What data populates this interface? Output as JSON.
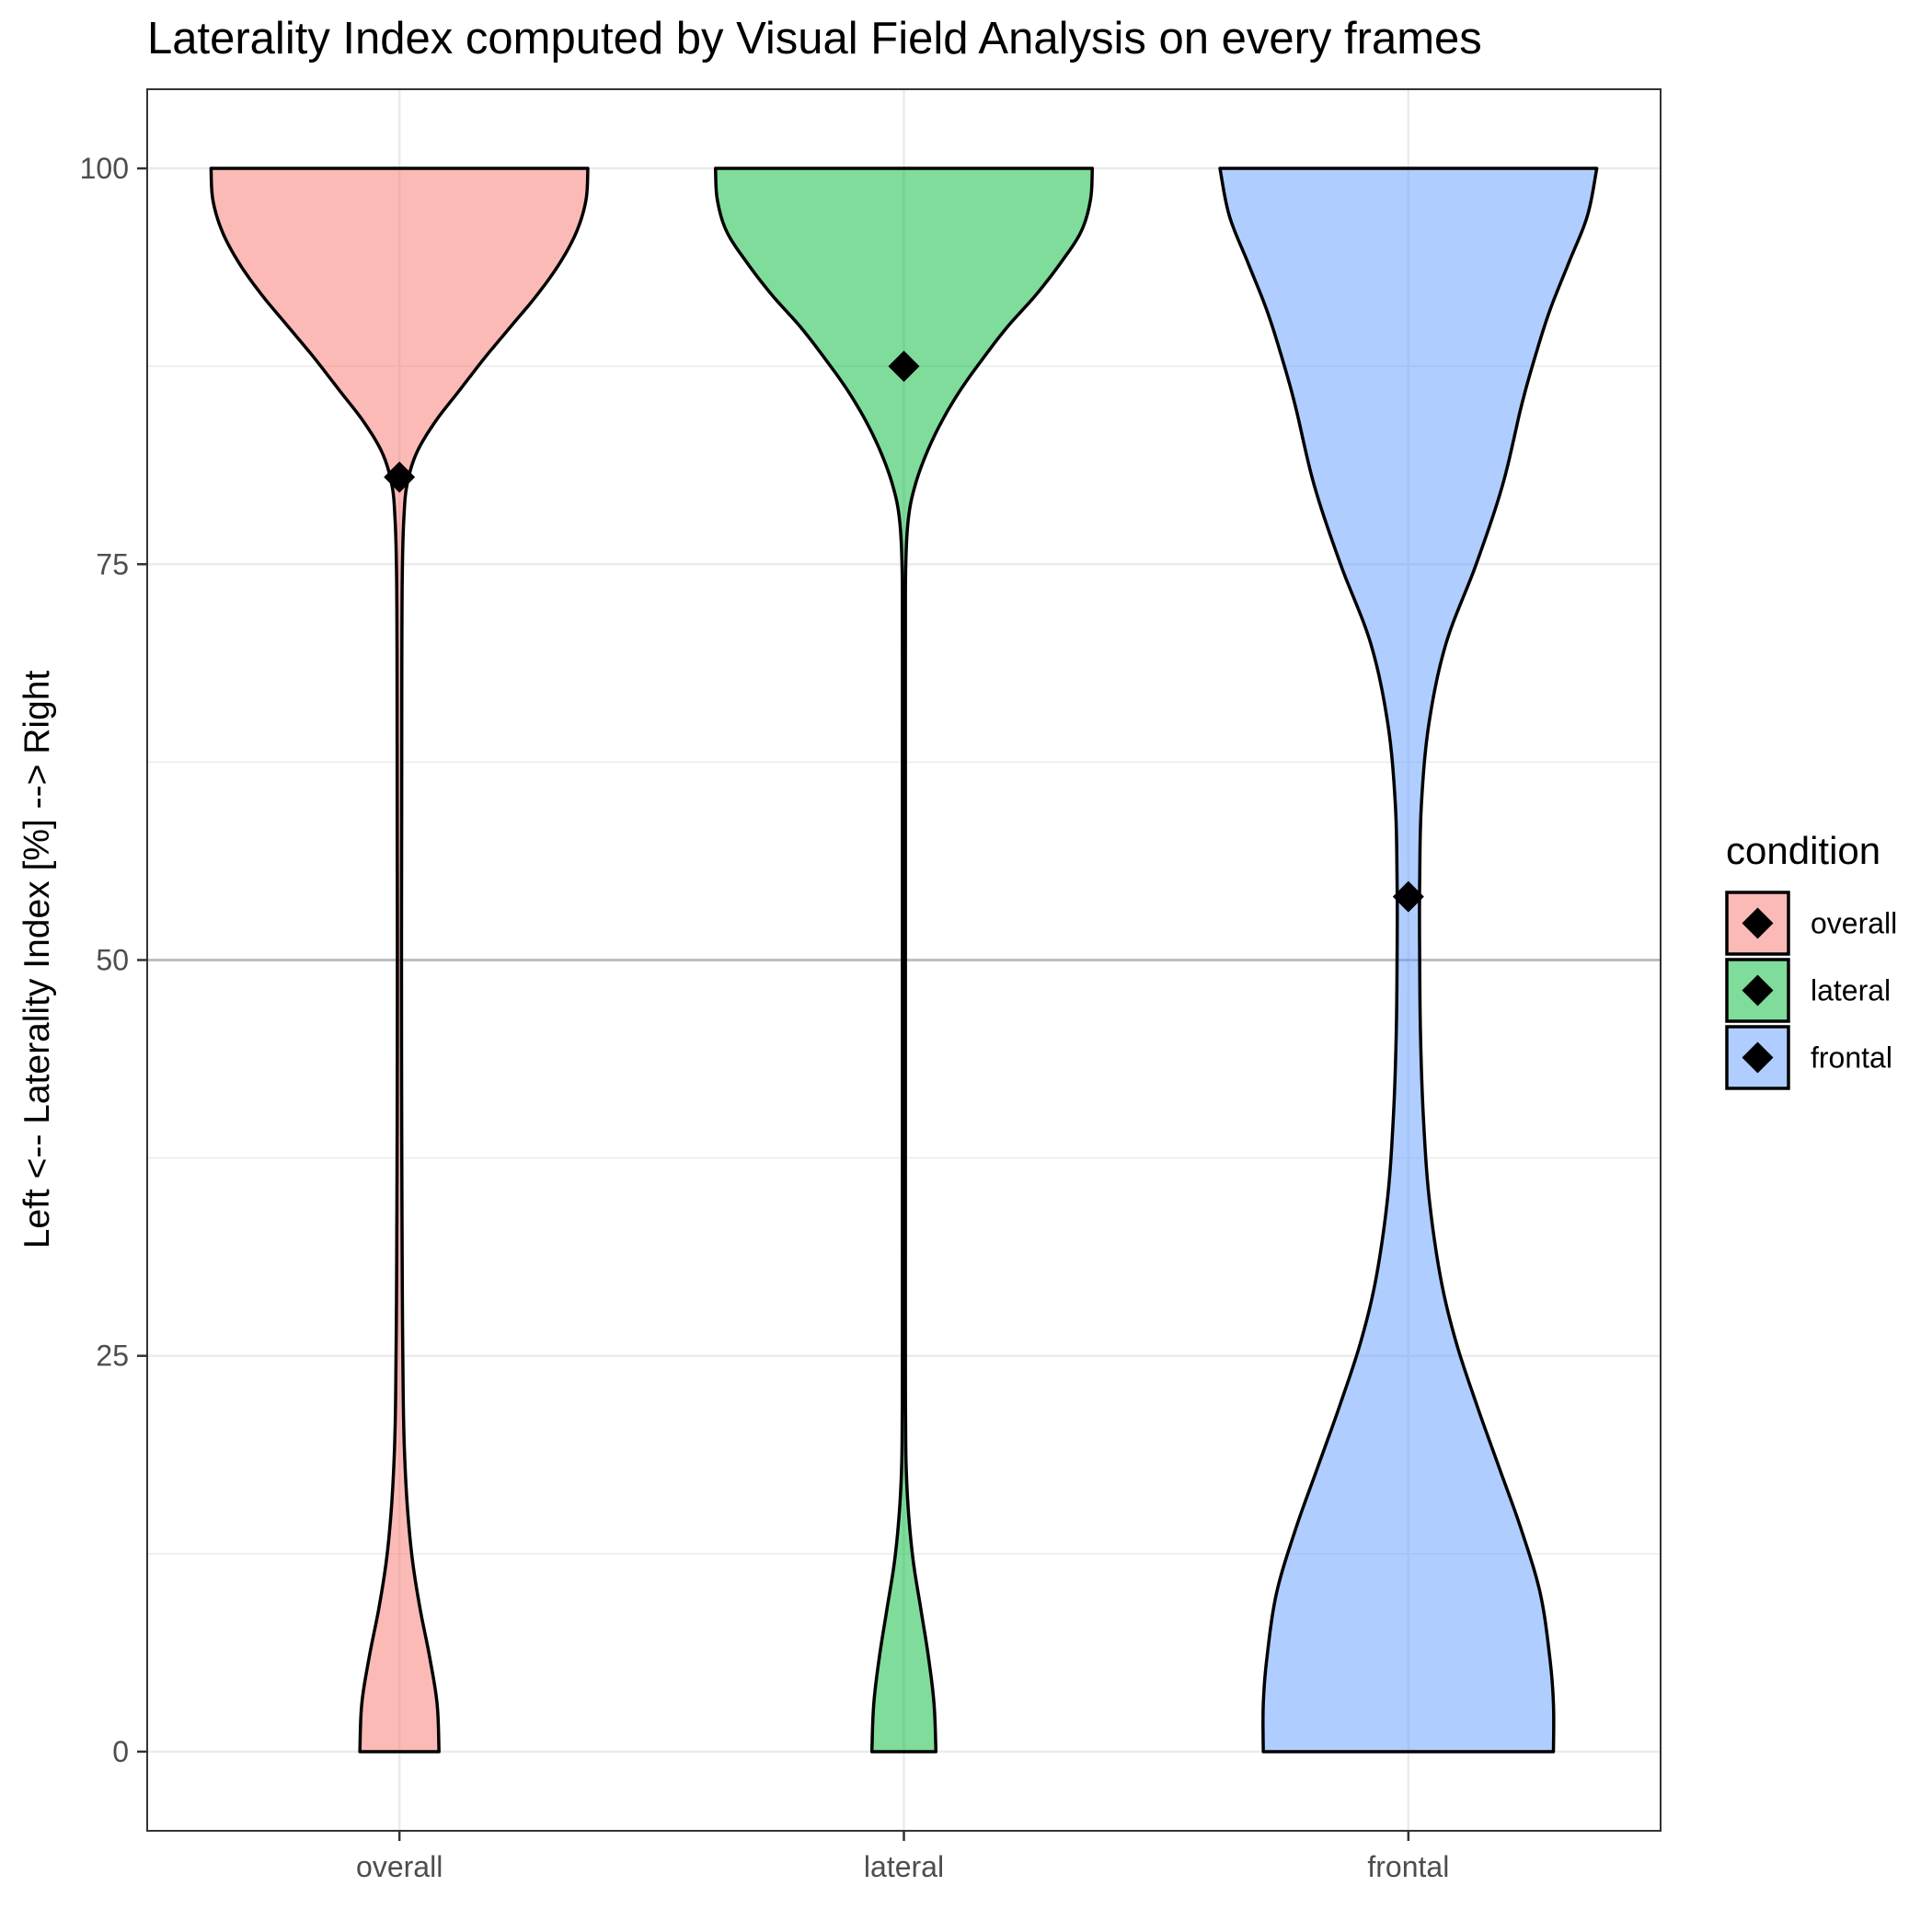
{
  "chart_data": {
    "type": "violin",
    "title": "Laterality Index computed by Visual Field Analysis on every frames",
    "xlabel": "",
    "ylabel": "Left <-- Laterality Index [%] --> Right",
    "ylim": [
      -5,
      105
    ],
    "yticks": [
      0,
      25,
      50,
      75,
      100
    ],
    "reference_line": 50,
    "grid": true,
    "categories": [
      "overall",
      "lateral",
      "frontal"
    ],
    "legend": {
      "title": "condition",
      "placement": "right",
      "items": [
        "overall",
        "lateral",
        "frontal"
      ]
    },
    "series": [
      {
        "name": "overall",
        "color": "#F8766D",
        "mean": 80.5,
        "density_profile": [
          [
            0,
            0.21
          ],
          [
            3,
            0.2
          ],
          [
            6,
            0.16
          ],
          [
            9,
            0.11
          ],
          [
            12,
            0.07
          ],
          [
            15,
            0.045
          ],
          [
            18,
            0.03
          ],
          [
            21,
            0.022
          ],
          [
            25,
            0.018
          ],
          [
            30,
            0.015
          ],
          [
            40,
            0.012
          ],
          [
            50,
            0.011
          ],
          [
            60,
            0.012
          ],
          [
            70,
            0.013
          ],
          [
            75,
            0.016
          ],
          [
            78,
            0.024
          ],
          [
            80,
            0.04
          ],
          [
            82,
            0.09
          ],
          [
            84,
            0.19
          ],
          [
            86,
            0.32
          ],
          [
            88,
            0.45
          ],
          [
            90,
            0.59
          ],
          [
            92,
            0.73
          ],
          [
            94,
            0.85
          ],
          [
            96,
            0.94
          ],
          [
            98,
            0.99
          ],
          [
            100,
            1.0
          ]
        ]
      },
      {
        "name": "lateral",
        "color": "#00BA38",
        "mean": 87.5,
        "density_profile": [
          [
            0,
            0.17
          ],
          [
            3,
            0.16
          ],
          [
            6,
            0.13
          ],
          [
            9,
            0.09
          ],
          [
            12,
            0.05
          ],
          [
            15,
            0.025
          ],
          [
            18,
            0.012
          ],
          [
            21,
            0.009
          ],
          [
            25,
            0.008
          ],
          [
            40,
            0.008
          ],
          [
            50,
            0.008
          ],
          [
            60,
            0.008
          ],
          [
            70,
            0.008
          ],
          [
            75,
            0.01
          ],
          [
            78,
            0.025
          ],
          [
            80,
            0.06
          ],
          [
            82,
            0.12
          ],
          [
            84,
            0.2
          ],
          [
            86,
            0.3
          ],
          [
            88,
            0.42
          ],
          [
            90,
            0.55
          ],
          [
            92,
            0.7
          ],
          [
            94,
            0.83
          ],
          [
            96,
            0.94
          ],
          [
            98,
            0.99
          ],
          [
            100,
            1.0
          ]
        ]
      },
      {
        "name": "frontal",
        "color": "#619CFF",
        "mean": 54,
        "density_profile": [
          [
            0,
            0.77
          ],
          [
            3,
            0.77
          ],
          [
            6,
            0.75
          ],
          [
            10,
            0.7
          ],
          [
            14,
            0.6
          ],
          [
            18,
            0.48
          ],
          [
            22,
            0.36
          ],
          [
            26,
            0.25
          ],
          [
            30,
            0.17
          ],
          [
            35,
            0.11
          ],
          [
            40,
            0.08
          ],
          [
            45,
            0.065
          ],
          [
            50,
            0.06
          ],
          [
            55,
            0.06
          ],
          [
            60,
            0.07
          ],
          [
            65,
            0.11
          ],
          [
            70,
            0.2
          ],
          [
            75,
            0.36
          ],
          [
            80,
            0.5
          ],
          [
            85,
            0.6
          ],
          [
            88,
            0.67
          ],
          [
            91,
            0.75
          ],
          [
            94,
            0.85
          ],
          [
            97,
            0.95
          ],
          [
            100,
            1.0
          ]
        ]
      }
    ]
  }
}
